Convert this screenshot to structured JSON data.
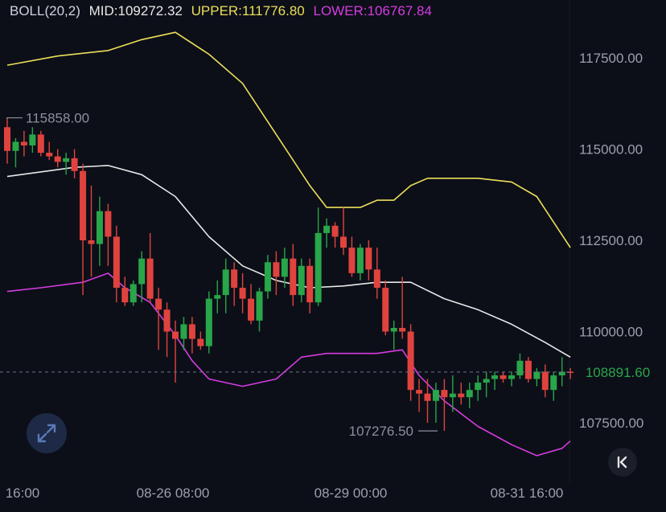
{
  "indicator": {
    "label": "BOLL(20,2)",
    "mid_label": "MID:109272.32",
    "upper_label": "UPPER:111776.80",
    "lower_label": "LOWER:106767.84",
    "colors": {
      "mid": "#e8e8e8",
      "upper": "#ecdf59",
      "lower": "#d63ce1"
    }
  },
  "controls": {
    "expand_icon": "expand-arrows-icon",
    "back_icon": "scroll-to-latest-icon"
  },
  "chart_data": {
    "type": "candlestick",
    "y_axis": {
      "ticks": [
        117500,
        115000,
        112500,
        110000,
        107500
      ],
      "tick_labels": [
        "117500.00",
        "115000.00",
        "112500.00",
        "110000.00",
        "107500.00"
      ],
      "range": [
        106200,
        118800
      ],
      "position": "right"
    },
    "x_axis": {
      "tick_labels": [
        "16:00",
        "08-26 08:00",
        "08-29 00:00",
        "08-31 16:00"
      ]
    },
    "current_price": {
      "value": 108891.6,
      "label": "108891.60",
      "color": "#29a54a"
    },
    "annotations": [
      {
        "label": "115858.00",
        "value": 115858,
        "kind": "high"
      },
      {
        "label": "107276.50",
        "value": 107276.5,
        "kind": "low"
      }
    ],
    "colors": {
      "up": "#29a54a",
      "down": "#e0433e"
    },
    "candles": [
      [
        115600,
        115860,
        114600,
        114950
      ],
      [
        114950,
        115300,
        114500,
        115200
      ],
      [
        115200,
        115500,
        114800,
        115100
      ],
      [
        115100,
        115600,
        114900,
        115400
      ],
      [
        115400,
        115500,
        114800,
        114900
      ],
      [
        114900,
        115200,
        114700,
        114800
      ],
      [
        114800,
        115000,
        114500,
        114650
      ],
      [
        114650,
        114900,
        114300,
        114750
      ],
      [
        114750,
        115000,
        114200,
        114400
      ],
      [
        114400,
        114600,
        111000,
        112500
      ],
      [
        112500,
        114000,
        111500,
        112400
      ],
      [
        112400,
        113700,
        111800,
        113300
      ],
      [
        113300,
        113500,
        111800,
        112600
      ],
      [
        112600,
        112900,
        110800,
        111200
      ],
      [
        111200,
        111500,
        110700,
        110800
      ],
      [
        110800,
        111400,
        110700,
        111300
      ],
      [
        111300,
        112200,
        110800,
        112000
      ],
      [
        112000,
        112700,
        110800,
        110900
      ],
      [
        110900,
        111200,
        109500,
        110600
      ],
      [
        110600,
        110800,
        109300,
        110000
      ],
      [
        110000,
        110300,
        108600,
        109800
      ],
      [
        109800,
        110400,
        109500,
        110200
      ],
      [
        110200,
        110400,
        109400,
        109800
      ],
      [
        109800,
        110000,
        109500,
        109600
      ],
      [
        109600,
        111100,
        109400,
        110900
      ],
      [
        110900,
        111400,
        110500,
        111000
      ],
      [
        111000,
        112000,
        110500,
        111700
      ],
      [
        111700,
        111900,
        110700,
        111200
      ],
      [
        111200,
        111600,
        110500,
        110900
      ],
      [
        110900,
        111300,
        110200,
        110300
      ],
      [
        110300,
        111200,
        110000,
        111100
      ],
      [
        111100,
        112100,
        110900,
        111900
      ],
      [
        111900,
        112200,
        111000,
        111500
      ],
      [
        111500,
        112300,
        111200,
        112000
      ],
      [
        112000,
        112400,
        110700,
        111000
      ],
      [
        111000,
        112000,
        110800,
        111800
      ],
      [
        111800,
        112000,
        110500,
        110800
      ],
      [
        110800,
        113400,
        110700,
        112700
      ],
      [
        112700,
        113100,
        112300,
        112900
      ],
      [
        112900,
        113000,
        112300,
        112600
      ],
      [
        112600,
        113400,
        112100,
        112300
      ],
      [
        112300,
        112600,
        111500,
        111600
      ],
      [
        111600,
        112400,
        111400,
        112300
      ],
      [
        112300,
        112500,
        111400,
        111700
      ],
      [
        111700,
        112300,
        110900,
        111200
      ],
      [
        111200,
        111400,
        109900,
        110000
      ],
      [
        110000,
        110300,
        109500,
        110100
      ],
      [
        110100,
        111500,
        109800,
        110000
      ],
      [
        110000,
        110200,
        108100,
        108400
      ],
      [
        108400,
        108700,
        107800,
        108300
      ],
      [
        108300,
        108700,
        107500,
        108100
      ],
      [
        108100,
        108600,
        107500,
        108400
      ],
      [
        108400,
        108700,
        107280,
        108200
      ],
      [
        108200,
        108800,
        107800,
        108300
      ],
      [
        108300,
        108600,
        108000,
        108200
      ],
      [
        108200,
        108600,
        107900,
        108400
      ],
      [
        108400,
        108800,
        108100,
        108600
      ],
      [
        108600,
        108900,
        108200,
        108700
      ],
      [
        108700,
        108900,
        108400,
        108800
      ],
      [
        108800,
        108900,
        108600,
        108700
      ],
      [
        108700,
        108900,
        108500,
        108800
      ],
      [
        108800,
        109400,
        108700,
        109200
      ],
      [
        109200,
        109300,
        108600,
        108700
      ],
      [
        108700,
        109000,
        108500,
        108900
      ],
      [
        108900,
        109100,
        108200,
        108400
      ],
      [
        108400,
        108900,
        108100,
        108800
      ],
      [
        108800,
        109300,
        108500,
        108900
      ],
      [
        108900,
        109000,
        108700,
        108892
      ]
    ],
    "boll_upper": [
      {
        "i": 0,
        "v": 117300
      },
      {
        "i": 6,
        "v": 117550
      },
      {
        "i": 12,
        "v": 117700
      },
      {
        "i": 16,
        "v": 118000
      },
      {
        "i": 20,
        "v": 118200
      },
      {
        "i": 24,
        "v": 117600
      },
      {
        "i": 28,
        "v": 116800
      },
      {
        "i": 32,
        "v": 115400
      },
      {
        "i": 36,
        "v": 114000
      },
      {
        "i": 38,
        "v": 113400
      },
      {
        "i": 42,
        "v": 113400
      },
      {
        "i": 44,
        "v": 113600
      },
      {
        "i": 46,
        "v": 113600
      },
      {
        "i": 48,
        "v": 114000
      },
      {
        "i": 50,
        "v": 114200
      },
      {
        "i": 56,
        "v": 114200
      },
      {
        "i": 60,
        "v": 114100
      },
      {
        "i": 63,
        "v": 113700
      },
      {
        "i": 67,
        "v": 112300
      }
    ],
    "boll_mid": [
      {
        "i": 0,
        "v": 114250
      },
      {
        "i": 8,
        "v": 114500
      },
      {
        "i": 12,
        "v": 114550
      },
      {
        "i": 16,
        "v": 114300
      },
      {
        "i": 20,
        "v": 113700
      },
      {
        "i": 24,
        "v": 112600
      },
      {
        "i": 28,
        "v": 111800
      },
      {
        "i": 32,
        "v": 111400
      },
      {
        "i": 36,
        "v": 111200
      },
      {
        "i": 40,
        "v": 111250
      },
      {
        "i": 44,
        "v": 111350
      },
      {
        "i": 48,
        "v": 111350
      },
      {
        "i": 52,
        "v": 110900
      },
      {
        "i": 56,
        "v": 110600
      },
      {
        "i": 60,
        "v": 110200
      },
      {
        "i": 64,
        "v": 109700
      },
      {
        "i": 67,
        "v": 109300
      }
    ],
    "boll_lower": [
      {
        "i": 0,
        "v": 111100
      },
      {
        "i": 4,
        "v": 111200
      },
      {
        "i": 9,
        "v": 111350
      },
      {
        "i": 12,
        "v": 111600
      },
      {
        "i": 14,
        "v": 111200
      },
      {
        "i": 17,
        "v": 110800
      },
      {
        "i": 20,
        "v": 109900
      },
      {
        "i": 22,
        "v": 109200
      },
      {
        "i": 24,
        "v": 108700
      },
      {
        "i": 28,
        "v": 108500
      },
      {
        "i": 32,
        "v": 108700
      },
      {
        "i": 35,
        "v": 109300
      },
      {
        "i": 38,
        "v": 109400
      },
      {
        "i": 44,
        "v": 109400
      },
      {
        "i": 47,
        "v": 109500
      },
      {
        "i": 49,
        "v": 108800
      },
      {
        "i": 52,
        "v": 108100
      },
      {
        "i": 56,
        "v": 107400
      },
      {
        "i": 60,
        "v": 106900
      },
      {
        "i": 63,
        "v": 106600
      },
      {
        "i": 66,
        "v": 106800
      },
      {
        "i": 67,
        "v": 107000
      }
    ]
  }
}
